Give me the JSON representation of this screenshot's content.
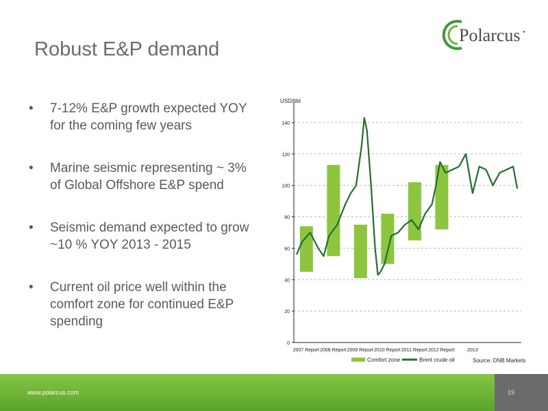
{
  "slide": {
    "title": "Robust E&P demand",
    "brand": "Polarcus",
    "bullets": [
      "7-12% E&P growth expected YOY for the coming few years",
      "Marine seismic representing ~ 3% of Global Offshore E&P spend",
      "Seismic demand expected to grow ~10 % YOY 2013 - 2015",
      "Current oil price well within the comfort zone for continued E&P spending"
    ],
    "footer_url": "www.polarcus.com",
    "page_number": "19",
    "source": "Source: DNB Markets"
  },
  "colors": {
    "accent_green": "#6cb33f",
    "oil_line": "#1f6e2a",
    "comfort_zone": "#8cc63f",
    "title_gray": "#6b6b6b"
  },
  "chart_data": {
    "type": "bar",
    "ylabel": "USD/bbl",
    "ylim": [
      0,
      150
    ],
    "yticks": [
      0,
      20,
      40,
      60,
      80,
      100,
      120,
      140
    ],
    "grid": true,
    "legend_position": "bottom",
    "categories": [
      "2007 Report",
      "2008 Report",
      "2009 Report",
      "2010 Report",
      "2011 Report",
      "2012 Report",
      "2013"
    ],
    "series": [
      {
        "name": "Comfort zone",
        "kind": "floating-bar",
        "ranges": [
          [
            45,
            74
          ],
          [
            55,
            113
          ],
          [
            41,
            75
          ],
          [
            50,
            82
          ],
          [
            65,
            102
          ],
          [
            72,
            113
          ],
          null
        ]
      },
      {
        "name": "Brent crude oil",
        "kind": "line",
        "x": [
          2006.0,
          2006.2,
          2006.5,
          2006.8,
          2007.0,
          2007.2,
          2007.5,
          2007.8,
          2008.0,
          2008.2,
          2008.4,
          2008.5,
          2008.6,
          2008.75,
          2008.9,
          2009.0,
          2009.1,
          2009.25,
          2009.5,
          2009.75,
          2010.0,
          2010.25,
          2010.5,
          2010.75,
          2011.0,
          2011.15,
          2011.3,
          2011.5,
          2011.75,
          2012.0,
          2012.25,
          2012.5,
          2012.75,
          2013.0,
          2013.25,
          2013.5,
          2013.75,
          2014.0,
          2014.15
        ],
        "values": [
          56,
          64,
          70,
          60,
          55,
          68,
          75,
          88,
          95,
          100,
          125,
          143,
          135,
          100,
          60,
          43,
          45,
          50,
          68,
          70,
          75,
          78,
          72,
          82,
          88,
          100,
          115,
          108,
          110,
          112,
          120,
          95,
          112,
          110,
          100,
          108,
          110,
          112,
          98
        ]
      }
    ]
  }
}
